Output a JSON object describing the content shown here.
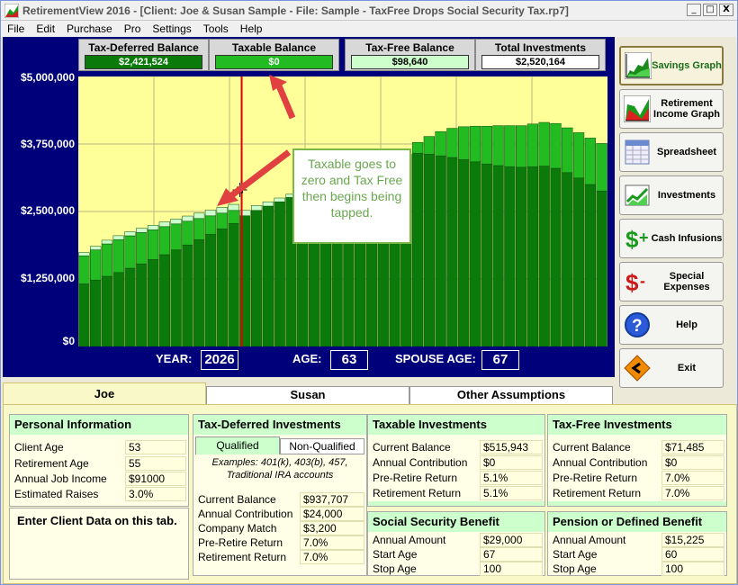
{
  "window": {
    "title": "RetirementView 2016 - [Client: Joe & Susan Sample  - File: Sample - TaxFree Drops Social Security Tax.rp7]",
    "buttons": [
      "_",
      "□",
      "X"
    ]
  },
  "menu": [
    "File",
    "Edit",
    "Purchase",
    "Pro",
    "Settings",
    "Tools",
    "Help"
  ],
  "totals": {
    "tax_deferred": {
      "label": "Tax-Deferred Balance",
      "value": "$2,421,524",
      "color": "#0a7a0a"
    },
    "taxable": {
      "label": "Taxable Balance",
      "value": "$0",
      "color": "#22bb22"
    },
    "tax_free": {
      "label": "Tax-Free Balance",
      "value": "$98,640",
      "color": "#ccffcc"
    },
    "total": {
      "label": "Total Investments",
      "value": "$2,520,164",
      "color": "#ffffff"
    }
  },
  "chart_data": {
    "type": "bar",
    "stacked": true,
    "yticks": [
      "$5,000,000",
      "$3,750,000",
      "$2,500,000",
      "$1,250,000",
      "$0"
    ],
    "ylim": [
      0,
      5000000
    ],
    "grid": true,
    "colors": {
      "tax_deferred": "#0a7a0a",
      "taxable": "#22bb22",
      "tax_free": "#ccffcc",
      "marker": "#dd0000"
    },
    "series": [
      {
        "name": "Tax-Deferred",
        "values": [
          1160000,
          1230000,
          1300000,
          1370000,
          1450000,
          1530000,
          1610000,
          1700000,
          1790000,
          1880000,
          1980000,
          2080000,
          2180000,
          2280000,
          2421524,
          2520000,
          2600000,
          2680000,
          2760000,
          2840000,
          2920000,
          3000000,
          3080000,
          3160000,
          3240000,
          3320000,
          3400000,
          3480000,
          3560000,
          3580000,
          3560000,
          3530000,
          3500000,
          3460000,
          3420000,
          3380000,
          3350000,
          3330000,
          3320000,
          3330000,
          3340000,
          3300000,
          3220000,
          3120000,
          3000000,
          2880000
        ]
      },
      {
        "name": "Taxable",
        "values": [
          520000,
          560000,
          600000,
          610000,
          600000,
          580000,
          550000,
          520000,
          480000,
          440000,
          390000,
          340000,
          290000,
          240000,
          0,
          0,
          0,
          0,
          0,
          0,
          0,
          0,
          0,
          0,
          0,
          0,
          0,
          0,
          0,
          200000,
          330000,
          450000,
          540000,
          610000,
          660000,
          700000,
          740000,
          760000,
          770000,
          790000,
          810000,
          830000,
          830000,
          840000,
          860000,
          880000
        ]
      },
      {
        "name": "Tax-Free",
        "values": [
          60000,
          64000,
          68000,
          72000,
          76000,
          80000,
          84000,
          88000,
          92000,
          96000,
          100000,
          104000,
          108000,
          112000,
          98640,
          90000,
          80000,
          70000,
          60000,
          50000,
          40000,
          30000,
          20000,
          10000,
          0,
          0,
          0,
          0,
          0,
          0,
          0,
          0,
          0,
          0,
          0,
          0,
          0,
          0,
          0,
          0,
          0,
          0,
          0,
          0,
          0,
          0
        ]
      }
    ],
    "marker_index": 14
  },
  "bottom": {
    "year_label": "YEAR:",
    "year": "2026",
    "age_label": "AGE:",
    "age": "63",
    "spouse_label": "SPOUSE AGE:",
    "spouse_age": "67"
  },
  "callout": "Taxable goes to zero and Tax Free then begins being tapped.",
  "sidebar": [
    {
      "label": "Savings Graph",
      "icon": "savings-graph-icon"
    },
    {
      "label": "Retirement Income Graph",
      "icon": "income-graph-icon"
    },
    {
      "label": "Spreadsheet",
      "icon": "spreadsheet-icon"
    },
    {
      "label": "Investments",
      "icon": "investments-icon"
    },
    {
      "label": "Cash Infusions",
      "icon": "cash-infusion-icon"
    },
    {
      "label": "Special Expenses",
      "icon": "special-expense-icon"
    },
    {
      "label": "Help",
      "icon": "help-icon"
    },
    {
      "label": "Exit",
      "icon": "exit-icon"
    }
  ],
  "tabs": [
    "Joe",
    "Susan",
    "Other Assumptions"
  ],
  "personal": {
    "title": "Personal Information",
    "rows": [
      {
        "label": "Client Age",
        "value": "53"
      },
      {
        "label": "Retirement Age",
        "value": "55"
      },
      {
        "label": "Annual Job Income",
        "value": "$91000"
      },
      {
        "label": "Estimated Raises",
        "value": "3.0%"
      }
    ],
    "note": "Enter Client Data on this tab."
  },
  "tax_deferred": {
    "title": "Tax-Deferred Investments",
    "subtabs": [
      "Qualified",
      "Non-Qualified"
    ],
    "examples": "Examples: 401(k), 403(b), 457, Traditional IRA accounts",
    "rows": [
      {
        "label": "Current Balance",
        "value": "$937,707"
      },
      {
        "label": "Annual Contribution",
        "value": "$24,000"
      },
      {
        "label": "Company Match",
        "value": "$3,200"
      },
      {
        "label": "Pre-Retire Return",
        "value": "7.0%"
      },
      {
        "label": "Retirement Return",
        "value": "7.0%"
      }
    ]
  },
  "taxable": {
    "title": "Taxable Investments",
    "rows": [
      {
        "label": "Current Balance",
        "value": "$515,943"
      },
      {
        "label": "Annual Contribution",
        "value": "$0"
      },
      {
        "label": "Pre-Retire Return",
        "value": "5.1%"
      },
      {
        "label": "Retirement Return",
        "value": "5.1%"
      }
    ]
  },
  "tax_free": {
    "title": "Tax-Free Investments",
    "rows": [
      {
        "label": "Current Balance",
        "value": "$71,485"
      },
      {
        "label": "Annual Contribution",
        "value": "$0"
      },
      {
        "label": "Pre-Retire Return",
        "value": "7.0%"
      },
      {
        "label": "Retirement Return",
        "value": "7.0%"
      }
    ]
  },
  "social_security": {
    "title": "Social Security Benefit",
    "rows": [
      {
        "label": "Annual Amount",
        "value": "$29,000"
      },
      {
        "label": "Start Age",
        "value": "67"
      },
      {
        "label": "Stop Age",
        "value": "100"
      }
    ]
  },
  "pension": {
    "title": "Pension or Defined Benefit",
    "rows": [
      {
        "label": "Annual Amount",
        "value": "$15,225"
      },
      {
        "label": "Start Age",
        "value": "60"
      },
      {
        "label": "Stop Age",
        "value": "100"
      }
    ]
  }
}
